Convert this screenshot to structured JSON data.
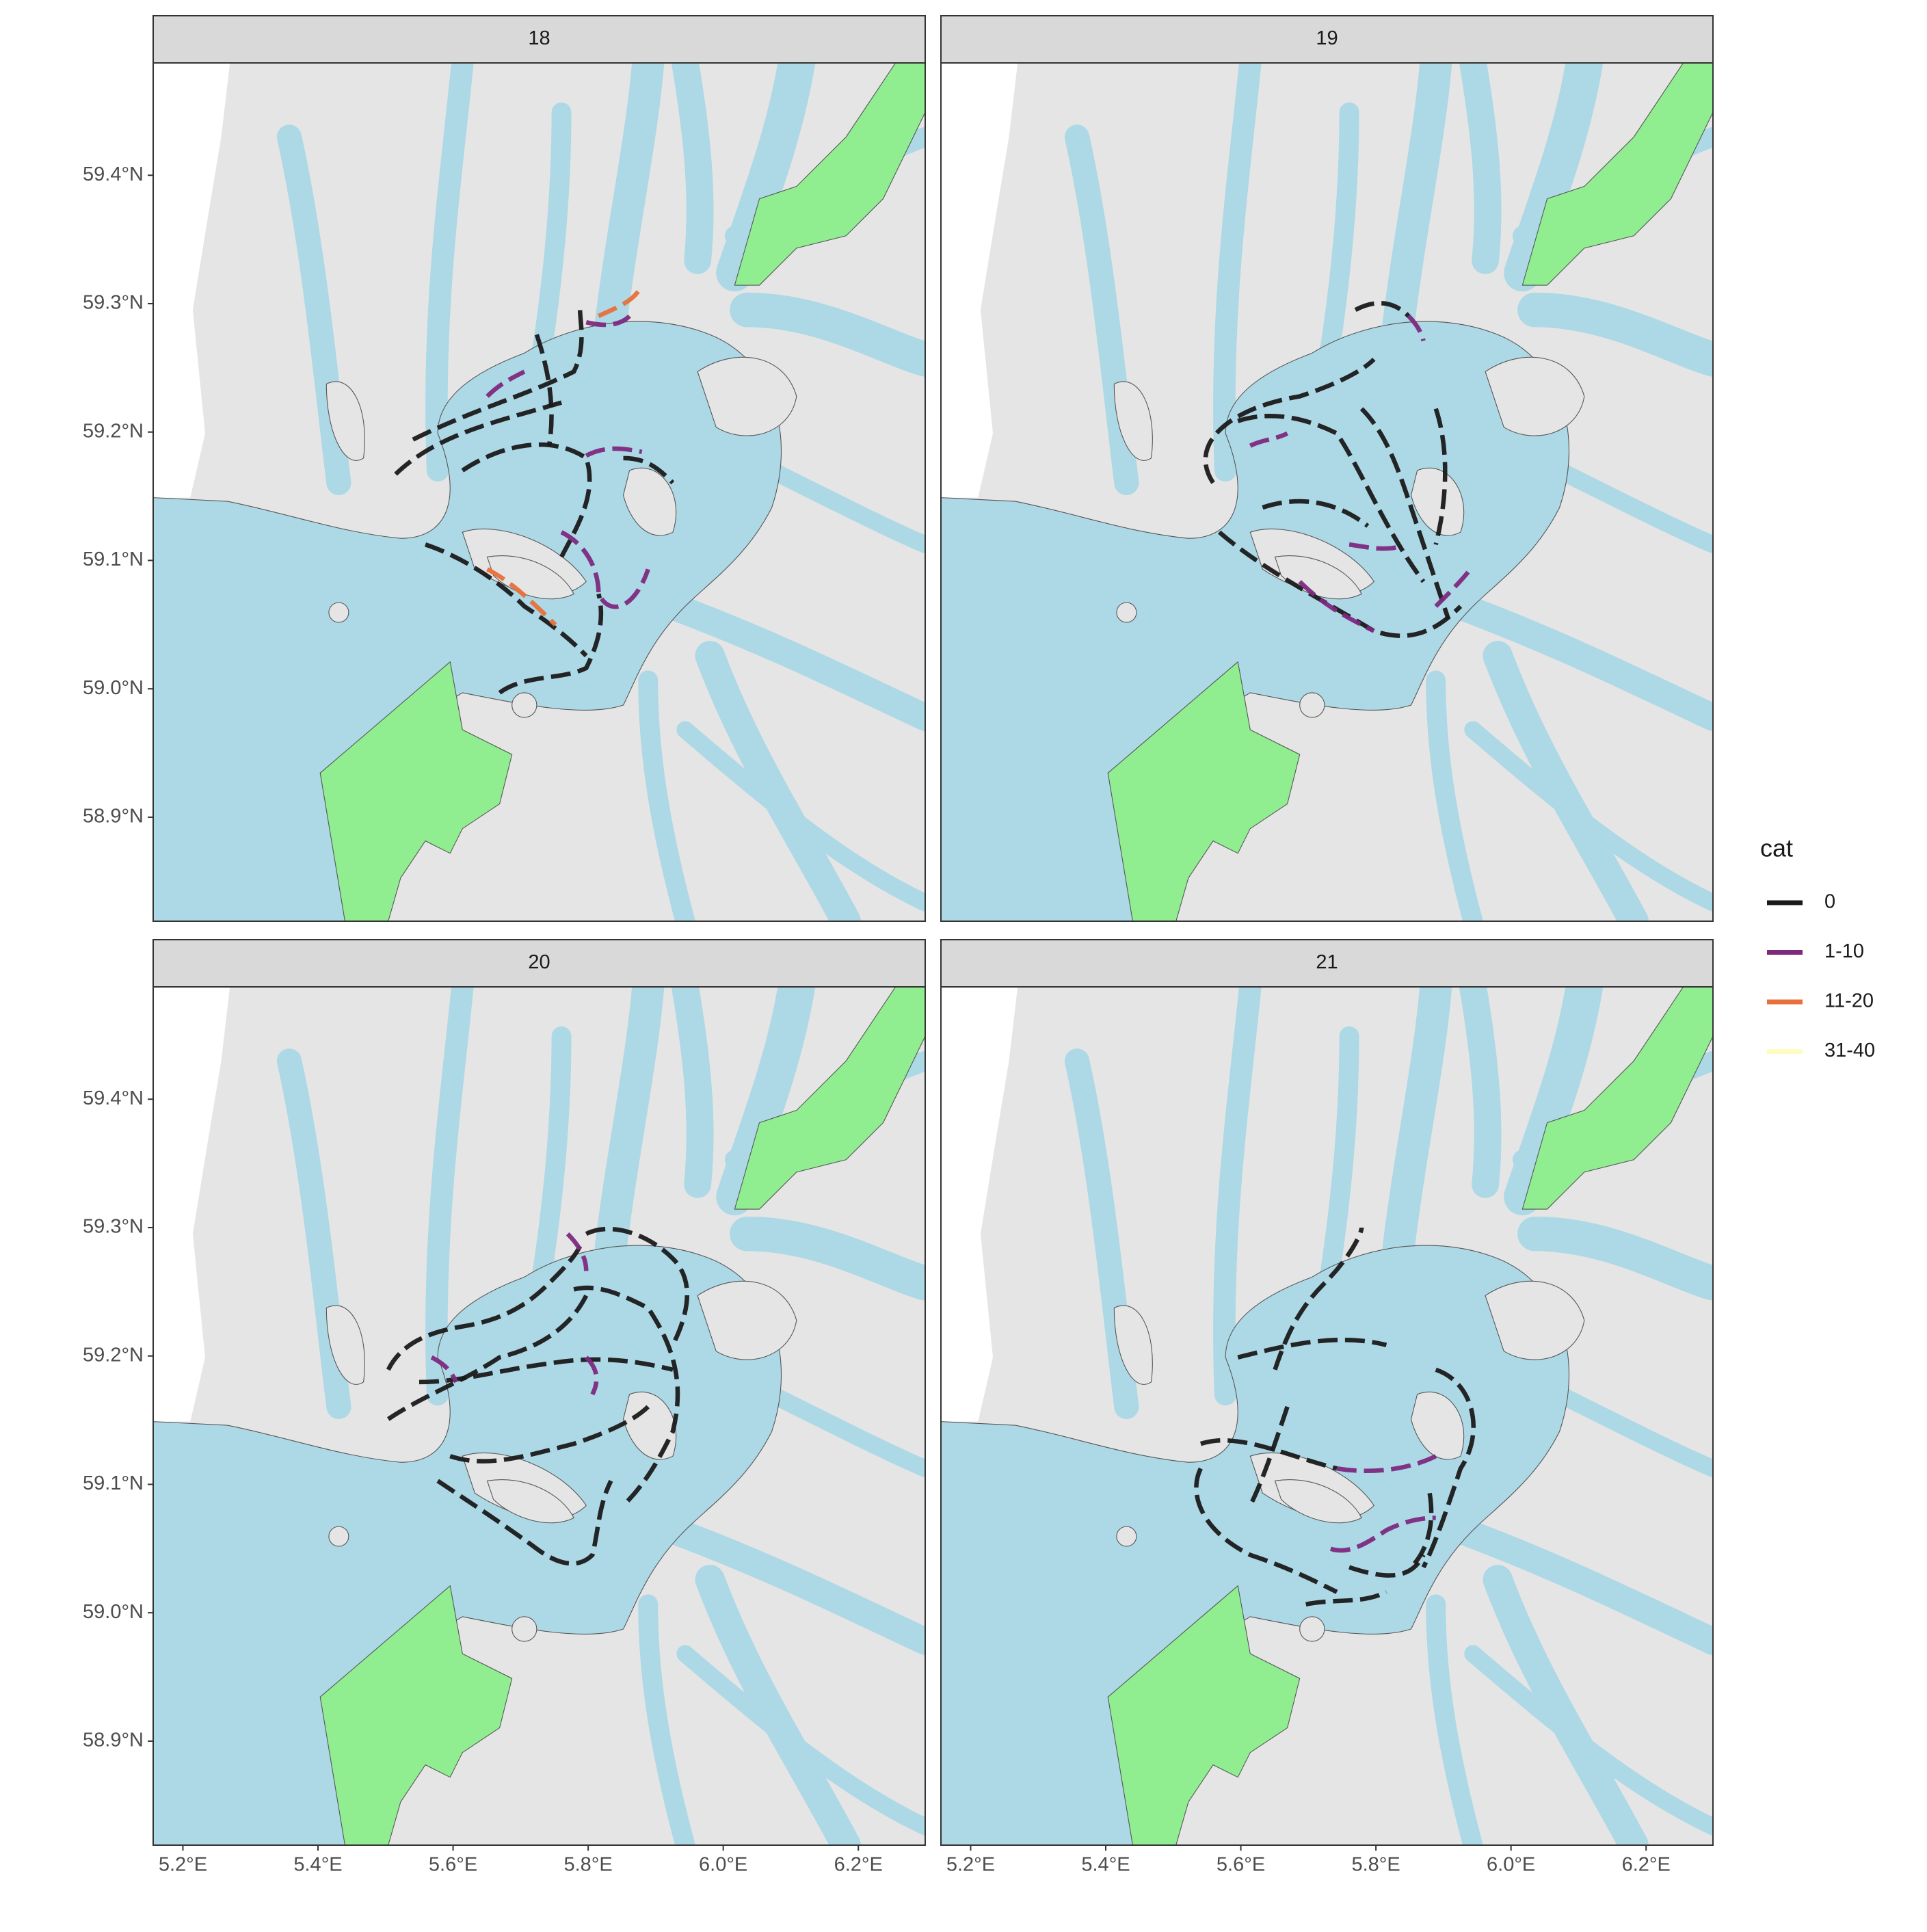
{
  "facets": [
    {
      "title": "18"
    },
    {
      "title": "19"
    },
    {
      "title": "20"
    },
    {
      "title": "21"
    }
  ],
  "xlim": [
    5.156,
    6.299
  ],
  "ylim": [
    58.819,
    59.4875
  ],
  "x_ticks": [
    {
      "value": 5.2,
      "label": "5.2°E"
    },
    {
      "value": 5.4,
      "label": "5.4°E"
    },
    {
      "value": 5.6,
      "label": "5.6°E"
    },
    {
      "value": 5.8,
      "label": "5.8°E"
    },
    {
      "value": 6.0,
      "label": "6.0°E"
    },
    {
      "value": 6.2,
      "label": "6.2°E"
    }
  ],
  "y_ticks": [
    {
      "value": 58.9,
      "label": "58.9°N"
    },
    {
      "value": 59.0,
      "label": "59.0°N"
    },
    {
      "value": 59.1,
      "label": "59.1°N"
    },
    {
      "value": 59.2,
      "label": "59.2°N"
    },
    {
      "value": 59.3,
      "label": "59.3°N"
    },
    {
      "value": 59.4,
      "label": "59.4°N"
    }
  ],
  "legend": {
    "title": "cat",
    "items": [
      {
        "name": "0",
        "color": "#1a1a1a"
      },
      {
        "name": "1-10",
        "color": "#7d2a7e"
      },
      {
        "name": "11-20",
        "color": "#e8703a"
      },
      {
        "name": "31-40",
        "color": "#fcfdbf"
      }
    ]
  }
}
